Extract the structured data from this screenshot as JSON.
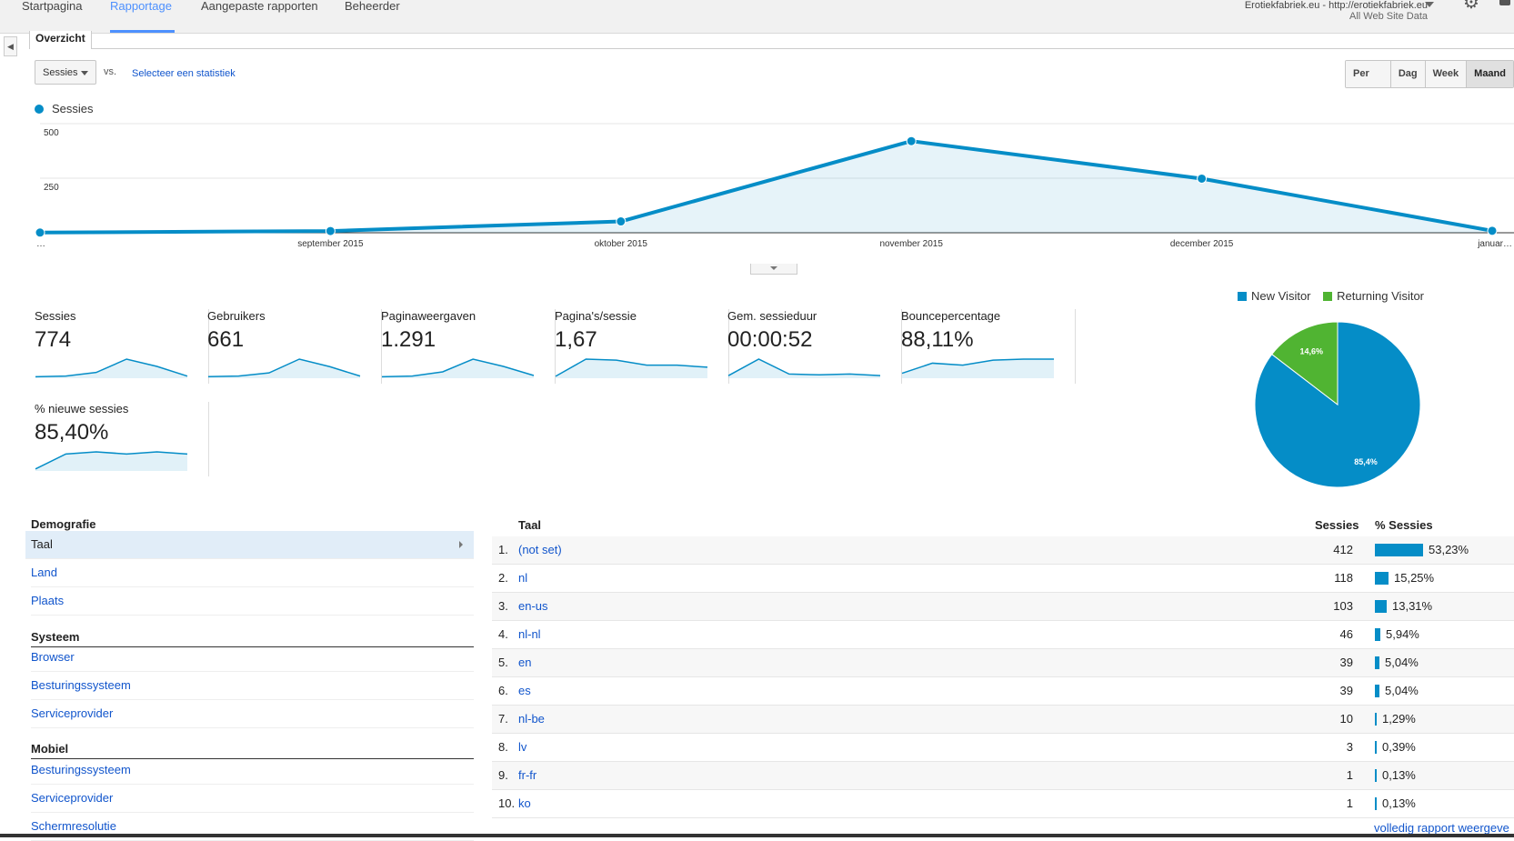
{
  "nav": {
    "items": [
      "Startpagina",
      "Rapportage",
      "Aangepaste rapporten",
      "Beheerder"
    ],
    "active": "Rapportage"
  },
  "account": {
    "name": "Erotiekfabriek.eu - http://erotiekfabriek.eu",
    "view": "All Web Site Data"
  },
  "overview_tab": "Overzicht",
  "metric_select": {
    "value": "Sessies"
  },
  "vs_label": "vs.",
  "compare_link": "Selecteer een statistiek",
  "time_buttons": [
    "Per uur",
    "Dag",
    "Week",
    "Maand"
  ],
  "time_active": "Maand",
  "chart_data": {
    "type": "line",
    "legend": "Sessies",
    "x": [
      "…",
      "september 2015",
      "oktober 2015",
      "november 2015",
      "december 2015",
      "januar…"
    ],
    "series": [
      {
        "name": "Sessies",
        "values": [
          1,
          8,
          52,
          420,
          248,
          9
        ]
      }
    ],
    "ylim": [
      0,
      500
    ],
    "yticks": [
      500,
      250
    ],
    "color": "#058dc7"
  },
  "scorecards": [
    {
      "label": "Sessies",
      "value": "774",
      "spark": [
        1,
        2,
        8,
        30,
        18,
        2
      ]
    },
    {
      "label": "Gebruikers",
      "value": "661",
      "spark": [
        1,
        2,
        7,
        29,
        17,
        2
      ]
    },
    {
      "label": "Paginaweergaven",
      "value": "1.291",
      "spark": [
        1,
        2,
        9,
        30,
        18,
        3
      ]
    },
    {
      "label": "Pagina's/sessie",
      "value": "1,67",
      "spark": [
        1,
        18,
        17,
        12,
        12,
        10
      ]
    },
    {
      "label": "Gem. sessieduur",
      "value": "00:00:52",
      "spark": [
        2,
        22,
        4,
        3,
        4,
        2
      ]
    },
    {
      "label": "Bouncepercentage",
      "value": "88,11%",
      "spark": [
        4,
        14,
        12,
        17,
        18,
        18
      ]
    },
    {
      "label": "% nieuwe sessies",
      "value": "85,40%",
      "spark": [
        1,
        15,
        17,
        15,
        17,
        15
      ]
    }
  ],
  "pie": {
    "legend": [
      {
        "label": "New Visitor",
        "color": "#058dc7"
      },
      {
        "label": "Returning Visitor",
        "color": "#50b432"
      }
    ],
    "slices": [
      {
        "name": "New Visitor",
        "value": 85.4,
        "label": "85,4%",
        "color": "#058dc7"
      },
      {
        "name": "Returning Visitor",
        "value": 14.6,
        "label": "14,6%",
        "color": "#50b432"
      }
    ]
  },
  "demographics": {
    "sections": [
      {
        "heading": "Demografie",
        "items": [
          "Taal",
          "Land",
          "Plaats"
        ]
      },
      {
        "heading": "Systeem",
        "items": [
          "Browser",
          "Besturingssysteem",
          "Serviceprovider"
        ]
      },
      {
        "heading": "Mobiel",
        "items": [
          "Besturingssysteem",
          "Serviceprovider",
          "Schermresolutie"
        ]
      }
    ],
    "selected": "Taal"
  },
  "table": {
    "headers": {
      "taal": "Taal",
      "sessies": "Sessies",
      "pct": "% Sessies"
    },
    "rows": [
      {
        "n": "1.",
        "label": "(not set)",
        "sessions": "412",
        "pct": "53,23%",
        "share": 0.5323
      },
      {
        "n": "2.",
        "label": "nl",
        "sessions": "118",
        "pct": "15,25%",
        "share": 0.1525
      },
      {
        "n": "3.",
        "label": "en-us",
        "sessions": "103",
        "pct": "13,31%",
        "share": 0.1331
      },
      {
        "n": "4.",
        "label": "nl-nl",
        "sessions": "46",
        "pct": "5,94%",
        "share": 0.0594
      },
      {
        "n": "5.",
        "label": "en",
        "sessions": "39",
        "pct": "5,04%",
        "share": 0.0504
      },
      {
        "n": "6.",
        "label": "es",
        "sessions": "39",
        "pct": "5,04%",
        "share": 0.0504
      },
      {
        "n": "7.",
        "label": "nl-be",
        "sessions": "10",
        "pct": "1,29%",
        "share": 0.0129
      },
      {
        "n": "8.",
        "label": "lv",
        "sessions": "3",
        "pct": "0,39%",
        "share": 0.0039
      },
      {
        "n": "9.",
        "label": "fr-fr",
        "sessions": "1",
        "pct": "0,13%",
        "share": 0.0013
      },
      {
        "n": "10.",
        "label": "ko",
        "sessions": "1",
        "pct": "0,13%",
        "share": 0.0013
      }
    ],
    "full_report": "volledig rapport weergeve"
  },
  "icons": {
    "settings": "gear-icon",
    "notifications": "bell-icon",
    "collapse": "chevron-left-icon",
    "dropdown": "caret-down-icon"
  }
}
